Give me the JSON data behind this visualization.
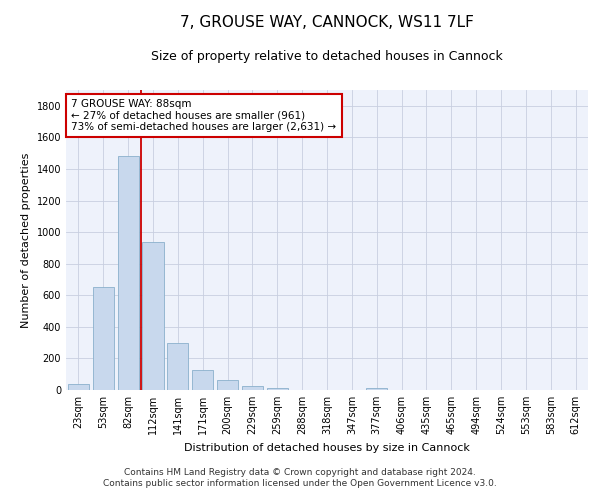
{
  "title": "7, GROUSE WAY, CANNOCK, WS11 7LF",
  "subtitle": "Size of property relative to detached houses in Cannock",
  "xlabel": "Distribution of detached houses by size in Cannock",
  "ylabel": "Number of detached properties",
  "bar_color": "#c8d8ed",
  "bar_edgecolor": "#8ab0cc",
  "background_color": "#eef2fb",
  "grid_color": "#c8cfe0",
  "categories": [
    "23sqm",
    "53sqm",
    "82sqm",
    "112sqm",
    "141sqm",
    "171sqm",
    "200sqm",
    "229sqm",
    "259sqm",
    "288sqm",
    "318sqm",
    "347sqm",
    "377sqm",
    "406sqm",
    "435sqm",
    "465sqm",
    "494sqm",
    "524sqm",
    "553sqm",
    "583sqm",
    "612sqm"
  ],
  "values": [
    40,
    650,
    1480,
    935,
    295,
    125,
    65,
    25,
    15,
    0,
    0,
    0,
    15,
    0,
    0,
    0,
    0,
    0,
    0,
    0,
    0
  ],
  "ylim": [
    0,
    1900
  ],
  "yticks": [
    0,
    200,
    400,
    600,
    800,
    1000,
    1200,
    1400,
    1600,
    1800
  ],
  "vline_x_index": 2,
  "vline_color": "#cc0000",
  "annotation_line1": "7 GROUSE WAY: 88sqm",
  "annotation_line2": "← 27% of detached houses are smaller (961)",
  "annotation_line3": "73% of semi-detached houses are larger (2,631) →",
  "annotation_box_facecolor": "#ffffff",
  "annotation_box_edgecolor": "#cc0000",
  "footnote1": "Contains HM Land Registry data © Crown copyright and database right 2024.",
  "footnote2": "Contains public sector information licensed under the Open Government Licence v3.0.",
  "title_fontsize": 11,
  "subtitle_fontsize": 9,
  "axis_label_fontsize": 8,
  "tick_fontsize": 7,
  "annotation_fontsize": 7.5,
  "footnote_fontsize": 6.5
}
